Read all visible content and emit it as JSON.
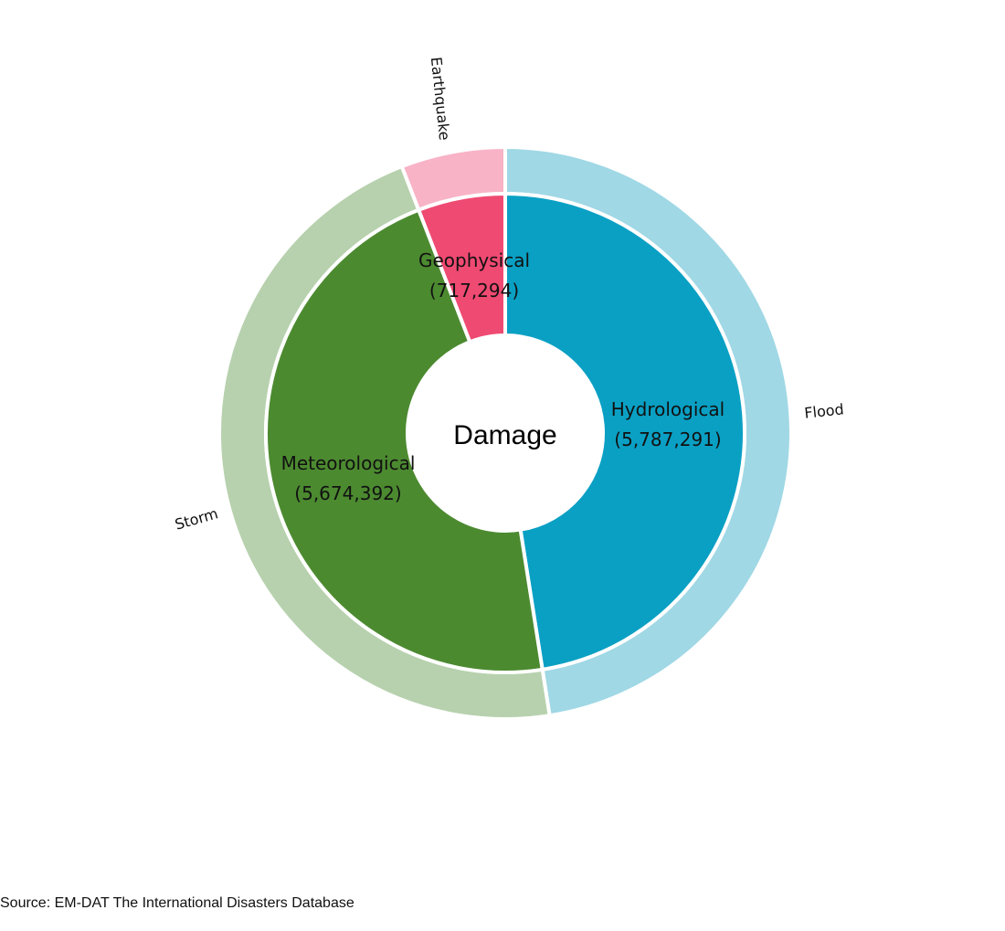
{
  "chart_data": {
    "type": "pie",
    "title": "Damage",
    "inner_ring": [
      {
        "label": "Hydrological",
        "value": 5787291,
        "value_text": "(5,787,291)",
        "color": "#0aa0c4"
      },
      {
        "label": "Meteorological",
        "value": 5674392,
        "value_text": "(5,674,392)",
        "color": "#4c8a30"
      },
      {
        "label": "Geophysical",
        "value": 717294,
        "value_text": "(717,294)",
        "color": "#ef4a72"
      }
    ],
    "outer_ring": [
      {
        "label": "Flood",
        "value": 5787291,
        "color": "#a0d8e5"
      },
      {
        "label": "Storm",
        "value": 5674392,
        "color": "#b7d1ae"
      },
      {
        "label": "Earthquake",
        "value": 717294,
        "color": "#f8b3c6"
      }
    ]
  },
  "source": "Source: EM-DAT The International Disasters Database"
}
